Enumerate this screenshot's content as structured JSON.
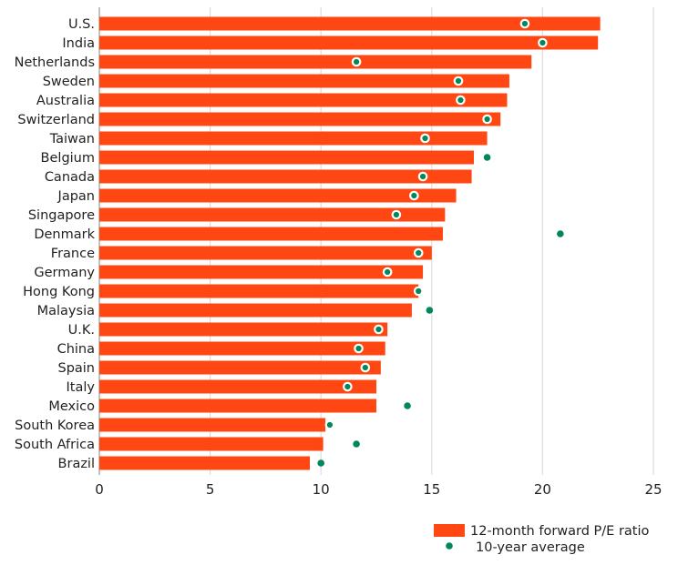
{
  "chart_data": {
    "type": "bar",
    "orientation": "horizontal",
    "title": "",
    "xlabel": "",
    "ylabel": "",
    "xlim": [
      0,
      25
    ],
    "xticks": [
      0,
      5,
      10,
      15,
      20,
      25
    ],
    "grid": "vertical",
    "legend_placement": "bottom-right",
    "categories": [
      "U.S.",
      "India",
      "Netherlands",
      "Sweden",
      "Australia",
      "Switzerland",
      "Taiwan",
      "Belgium",
      "Canada",
      "Japan",
      "Singapore",
      "Denmark",
      "France",
      "Germany",
      "Hong Kong",
      "Malaysia",
      "U.K.",
      "China",
      "Spain",
      "Italy",
      "Mexico",
      "South Korea",
      "South Africa",
      "Brazil"
    ],
    "series": [
      {
        "name": "12-month forward P/E ratio",
        "type": "bar",
        "color": "#FF4713",
        "values": [
          22.6,
          22.5,
          19.5,
          18.5,
          18.4,
          18.1,
          17.5,
          16.9,
          16.8,
          16.1,
          15.6,
          15.5,
          15.0,
          14.6,
          14.4,
          14.1,
          13.0,
          12.9,
          12.7,
          12.5,
          12.5,
          10.2,
          10.1,
          9.5
        ]
      },
      {
        "name": "10-year average",
        "type": "scatter",
        "color": "#00875A",
        "values": [
          19.2,
          20.0,
          11.6,
          16.2,
          16.3,
          17.5,
          14.7,
          17.5,
          14.6,
          14.2,
          13.4,
          20.8,
          14.4,
          13.0,
          14.4,
          14.9,
          12.6,
          11.7,
          12.0,
          11.2,
          13.9,
          10.4,
          11.6,
          10.0
        ]
      }
    ]
  }
}
